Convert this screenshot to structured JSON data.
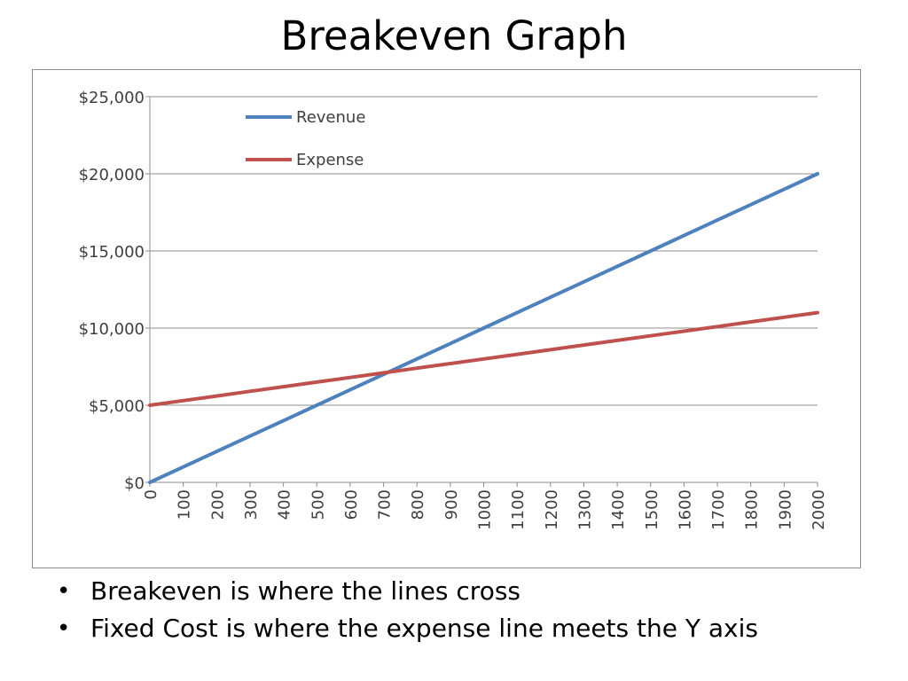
{
  "slide": {
    "title": "Breakeven Graph",
    "bullets": [
      "Breakeven is where the lines cross",
      "Fixed Cost is where the expense line meets the Y axis"
    ],
    "bullet_glyph": "•"
  },
  "chart_data": {
    "type": "line",
    "title": "",
    "xlabel": "",
    "ylabel": "",
    "x": [
      0,
      100,
      200,
      300,
      400,
      500,
      600,
      700,
      800,
      900,
      1000,
      1100,
      1200,
      1300,
      1400,
      1500,
      1600,
      1700,
      1800,
      1900,
      2000
    ],
    "x_tick_labels": [
      "0",
      "100",
      "200",
      "300",
      "400",
      "500",
      "600",
      "700",
      "800",
      "900",
      "1000",
      "1100",
      "1200",
      "1300",
      "1400",
      "1500",
      "1600",
      "1700",
      "1800",
      "1900",
      "2000"
    ],
    "ylim": [
      0,
      25000
    ],
    "y_ticks": [
      0,
      5000,
      10000,
      15000,
      20000,
      25000
    ],
    "y_tick_labels": [
      "$0",
      "$5,000",
      "$10,000",
      "$15,000",
      "$20,000",
      "$25,000"
    ],
    "grid": true,
    "legend_position": "top-left",
    "series": [
      {
        "name": "Revenue",
        "color": "#4F81BD",
        "values": [
          0,
          1000,
          2000,
          3000,
          4000,
          5000,
          6000,
          7000,
          8000,
          9000,
          10000,
          11000,
          12000,
          13000,
          14000,
          15000,
          16000,
          17000,
          18000,
          19000,
          20000
        ]
      },
      {
        "name": "Expense",
        "color": "#C0504D",
        "values": [
          5000,
          5300,
          5600,
          5900,
          6200,
          6500,
          6800,
          7100,
          7400,
          7700,
          8000,
          8300,
          8600,
          8900,
          9200,
          9500,
          9800,
          10100,
          10400,
          10700,
          11000
        ]
      }
    ]
  }
}
